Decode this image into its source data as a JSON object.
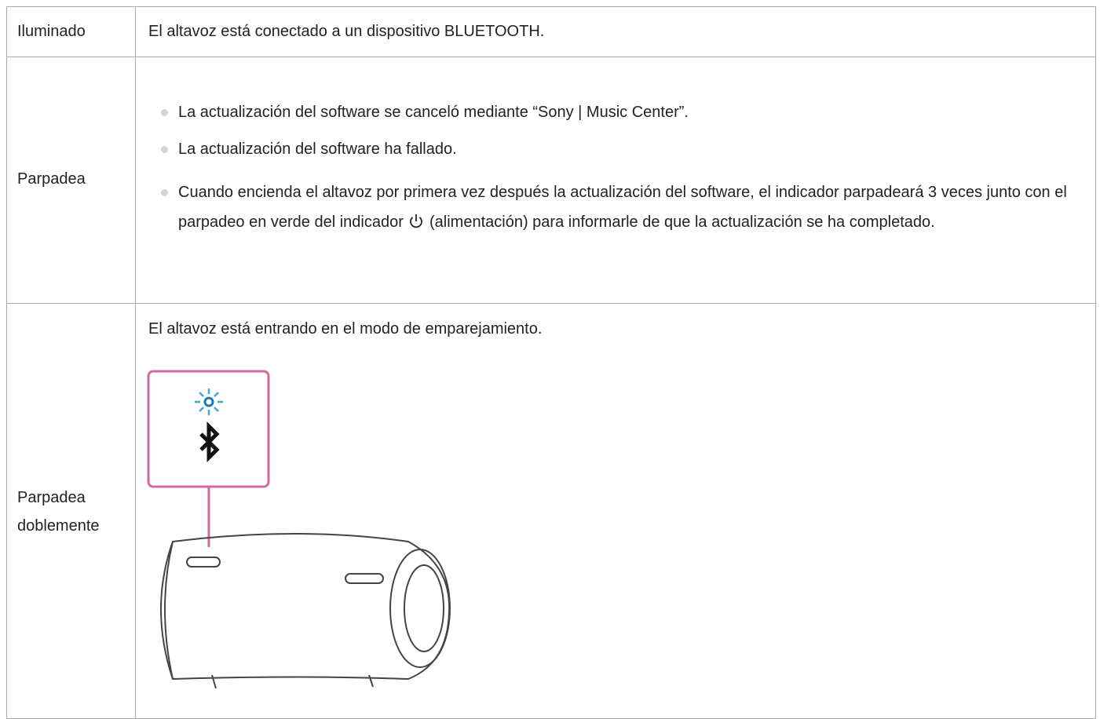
{
  "table": {
    "rows": [
      {
        "label": "Iluminado",
        "text": "El altavoz está conectado a un dispositivo BLUETOOTH."
      },
      {
        "label": "Parpadea",
        "items": [
          "La actualización del software se canceló mediante “Sony | Music Center”.",
          "La actualización del software ha fallado.",
          {
            "before_icon": "Cuando encienda el altavoz por primera vez después la actualización del software, el indicador parpadeará 3 veces junto con el parpadeo en verde del indicador",
            "after_icon": "(alimentación) para informarle de que la actualización se ha completado."
          }
        ]
      },
      {
        "label": "Parpadea doblemente",
        "text": "El altavoz está entrando en el modo de emparejamiento."
      }
    ]
  }
}
